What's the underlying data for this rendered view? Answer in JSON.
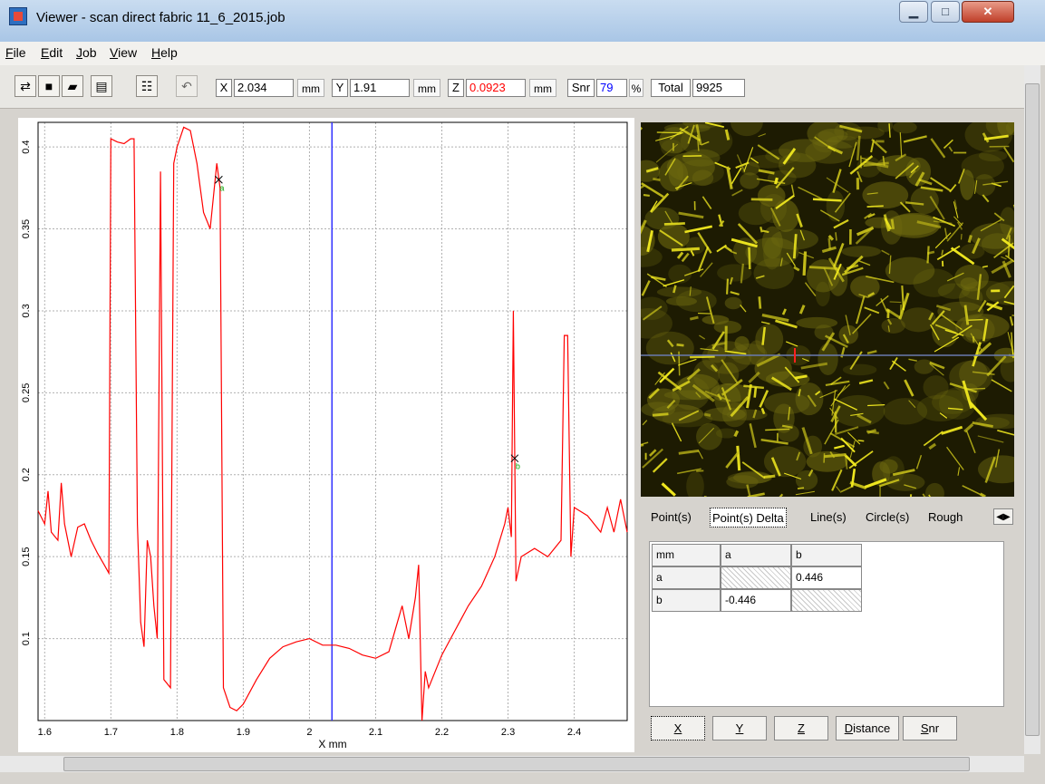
{
  "window": {
    "title": "Viewer - scan direct fabric 11_6_2015.job"
  },
  "menu": [
    "File",
    "Edit",
    "Job",
    "View",
    "Help"
  ],
  "toolbar": {
    "x_label": "X",
    "x_value": "2.034",
    "x_unit": "mm",
    "y_label": "Y",
    "y_value": "1.91",
    "y_unit": "mm",
    "z_label": "Z",
    "z_value": "0.0923",
    "z_unit": "mm",
    "snr_label": "Snr",
    "snr_value": "79",
    "snr_unit": "%",
    "total_label": "Total",
    "total_value": "9925"
  },
  "colors": {
    "curve": "#ff0000",
    "cursor": "#3030ff",
    "z_value": "#ff0000",
    "snr_value": "#0000ff"
  },
  "chart_data": {
    "type": "line",
    "xlabel": "X mm",
    "ylabel": "",
    "xlim": [
      1.59,
      2.48
    ],
    "ylim": [
      0.05,
      0.415
    ],
    "x_ticks": [
      1.6,
      1.7,
      1.8,
      1.9,
      2.0,
      2.1,
      2.2,
      2.3,
      2.4
    ],
    "x_tick_labels": [
      "1.6",
      "1.7",
      "1.8",
      "1.9",
      "2",
      "2.1",
      "2.2",
      "2.3",
      "2.4"
    ],
    "y_ticks": [
      0.1,
      0.15,
      0.2,
      0.25,
      0.3,
      0.35,
      0.4
    ],
    "y_tick_labels": [
      "0.1",
      "0.15",
      "0.2",
      "0.25",
      "0.3",
      "0.35",
      "0.4"
    ],
    "grid": true,
    "cursor_x": 2.034,
    "markers": [
      {
        "x": 1.863,
        "y": 0.38,
        "label": "a"
      },
      {
        "x": 2.31,
        "y": 0.21,
        "label": "b"
      }
    ],
    "series": [
      {
        "values_xy": [
          [
            1.59,
            0.178
          ],
          [
            1.6,
            0.17
          ],
          [
            1.605,
            0.19
          ],
          [
            1.61,
            0.165
          ],
          [
            1.62,
            0.16
          ],
          [
            1.625,
            0.195
          ],
          [
            1.63,
            0.17
          ],
          [
            1.64,
            0.15
          ],
          [
            1.65,
            0.168
          ],
          [
            1.66,
            0.17
          ],
          [
            1.67,
            0.16
          ],
          [
            1.68,
            0.152
          ],
          [
            1.69,
            0.145
          ],
          [
            1.697,
            0.14
          ],
          [
            1.7,
            0.405
          ],
          [
            1.71,
            0.403
          ],
          [
            1.72,
            0.402
          ],
          [
            1.73,
            0.405
          ],
          [
            1.735,
            0.405
          ],
          [
            1.74,
            0.17
          ],
          [
            1.745,
            0.11
          ],
          [
            1.75,
            0.095
          ],
          [
            1.755,
            0.16
          ],
          [
            1.76,
            0.15
          ],
          [
            1.765,
            0.12
          ],
          [
            1.77,
            0.1
          ],
          [
            1.775,
            0.385
          ],
          [
            1.78,
            0.075
          ],
          [
            1.79,
            0.07
          ],
          [
            1.795,
            0.39
          ],
          [
            1.8,
            0.4
          ],
          [
            1.81,
            0.412
          ],
          [
            1.82,
            0.41
          ],
          [
            1.83,
            0.39
          ],
          [
            1.84,
            0.36
          ],
          [
            1.85,
            0.35
          ],
          [
            1.86,
            0.39
          ],
          [
            1.865,
            0.375
          ],
          [
            1.87,
            0.07
          ],
          [
            1.88,
            0.058
          ],
          [
            1.89,
            0.056
          ],
          [
            1.9,
            0.06
          ],
          [
            1.92,
            0.075
          ],
          [
            1.94,
            0.088
          ],
          [
            1.96,
            0.095
          ],
          [
            1.98,
            0.098
          ],
          [
            2.0,
            0.1
          ],
          [
            2.02,
            0.096
          ],
          [
            2.04,
            0.096
          ],
          [
            2.06,
            0.094
          ],
          [
            2.08,
            0.09
          ],
          [
            2.1,
            0.088
          ],
          [
            2.12,
            0.092
          ],
          [
            2.14,
            0.12
          ],
          [
            2.15,
            0.1
          ],
          [
            2.16,
            0.125
          ],
          [
            2.165,
            0.145
          ],
          [
            2.17,
            0.05
          ],
          [
            2.175,
            0.08
          ],
          [
            2.18,
            0.07
          ],
          [
            2.2,
            0.09
          ],
          [
            2.22,
            0.105
          ],
          [
            2.24,
            0.12
          ],
          [
            2.26,
            0.132
          ],
          [
            2.28,
            0.15
          ],
          [
            2.295,
            0.17
          ],
          [
            2.3,
            0.18
          ],
          [
            2.305,
            0.162
          ],
          [
            2.308,
            0.3
          ],
          [
            2.312,
            0.135
          ],
          [
            2.32,
            0.15
          ],
          [
            2.34,
            0.155
          ],
          [
            2.36,
            0.15
          ],
          [
            2.38,
            0.16
          ],
          [
            2.385,
            0.285
          ],
          [
            2.39,
            0.285
          ],
          [
            2.395,
            0.15
          ],
          [
            2.4,
            0.18
          ],
          [
            2.42,
            0.175
          ],
          [
            2.44,
            0.165
          ],
          [
            2.45,
            0.18
          ],
          [
            2.46,
            0.165
          ],
          [
            2.47,
            0.185
          ],
          [
            2.48,
            0.165
          ]
        ]
      }
    ]
  },
  "tabs": [
    "Point(s)",
    "Point(s) Delta",
    "Line(s)",
    "Circle(s)",
    "Rough"
  ],
  "delta_table": {
    "header": [
      "mm",
      "a",
      "b"
    ],
    "rows": [
      {
        "label": "a",
        "a": "",
        "b": "0.446"
      },
      {
        "label": "b",
        "a": "-0.446",
        "b": ""
      }
    ]
  },
  "bottom_buttons": [
    "X",
    "Y",
    "Z",
    "Distance",
    "Snr"
  ]
}
